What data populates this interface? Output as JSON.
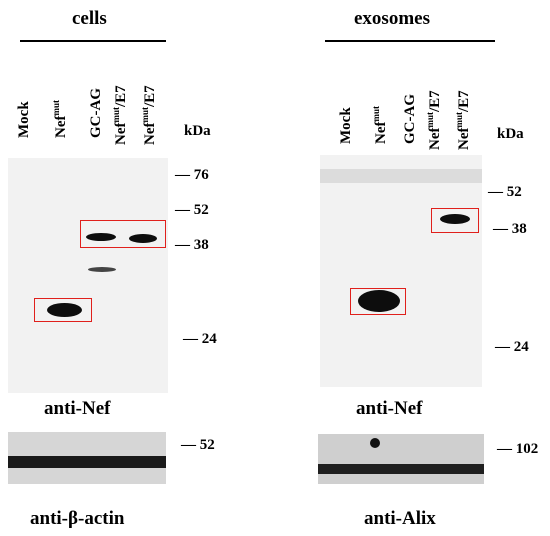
{
  "left": {
    "title": "cells",
    "lanes": [
      "Mock",
      "Nef",
      "GC-AG",
      "Nef",
      "Nef"
    ],
    "lane_sups": [
      "",
      "mut",
      "",
      "mut",
      "mut"
    ],
    "lane_suffixes": [
      "",
      "",
      "",
      "/E7",
      "/E7"
    ],
    "kda": "kDa",
    "markers": [
      "76",
      "52",
      "38",
      "24"
    ],
    "caption_main": "anti-Nef",
    "strip_marker": "52",
    "caption_strip": "anti-β-actin"
  },
  "right": {
    "title": "exosomes",
    "lanes": [
      "Mock",
      "Nef",
      "GC-AG",
      "Nef",
      "Nef"
    ],
    "lane_sups": [
      "",
      "mut",
      "",
      "mut",
      "mut"
    ],
    "lane_suffixes": [
      "",
      "",
      "",
      "/E7",
      "/E7"
    ],
    "kda": "kDa",
    "markers": [
      "52",
      "38",
      "24"
    ],
    "caption_main": "anti-Nef",
    "strip_marker": "102",
    "caption_strip": "anti-Alix"
  },
  "colors": {
    "highlight_box": "#e0201c",
    "band": "#0d0d0d"
  }
}
